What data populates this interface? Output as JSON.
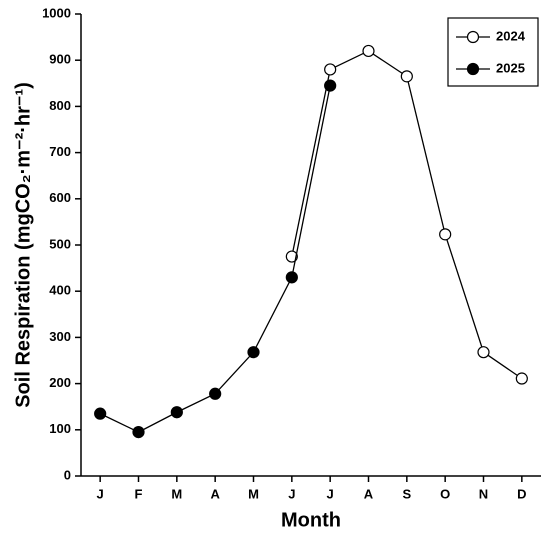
{
  "chart_data": {
    "type": "line",
    "x_label": "Month",
    "y_label": "Soil Respiration (mgCO₂·m⁻²·hr⁻¹)",
    "categories": [
      "J",
      "F",
      "M",
      "A",
      "M",
      "J",
      "J",
      "A",
      "S",
      "O",
      "N",
      "D"
    ],
    "series": [
      {
        "name": "2024",
        "color": "#000000",
        "marker": "open",
        "values": [
          null,
          null,
          null,
          null,
          null,
          475,
          880,
          920,
          865,
          523,
          268,
          211
        ]
      },
      {
        "name": "2025",
        "color": "#000000",
        "marker": "filled",
        "values": [
          135,
          95,
          138,
          178,
          268,
          430,
          845,
          null,
          null,
          null,
          null,
          null
        ]
      }
    ],
    "ylim": [
      0,
      1000
    ],
    "yticks": [
      0,
      100,
      200,
      300,
      400,
      500,
      600,
      700,
      800,
      900,
      1000
    ],
    "legend": "upper right",
    "grid": false
  }
}
